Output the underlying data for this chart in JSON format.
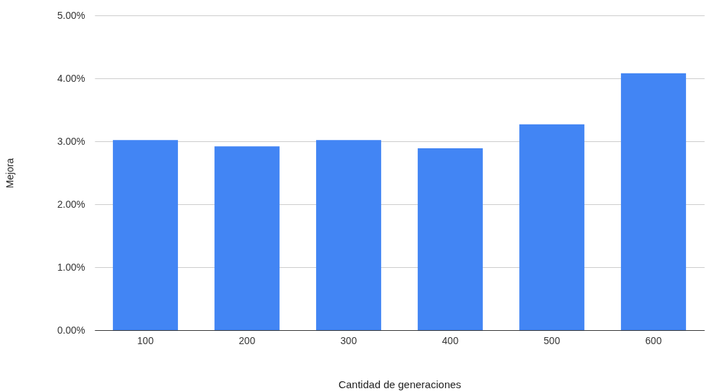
{
  "chart_data": {
    "type": "bar",
    "xlabel": "Cantidad de generaciones",
    "ylabel": "Mejora",
    "categories": [
      "100",
      "200",
      "300",
      "400",
      "500",
      "600"
    ],
    "values": [
      3.02,
      2.92,
      3.02,
      2.89,
      3.27,
      4.08
    ],
    "color": "#4285f4",
    "ylim": [
      0,
      5
    ],
    "yticks": [
      {
        "value": 0,
        "label": "0.00%"
      },
      {
        "value": 1,
        "label": "1.00%"
      },
      {
        "value": 2,
        "label": "2.00%"
      },
      {
        "value": 3,
        "label": "3.00%"
      },
      {
        "value": 4,
        "label": "4.00%"
      },
      {
        "value": 5,
        "label": "5.00%"
      }
    ],
    "grid": "y"
  }
}
